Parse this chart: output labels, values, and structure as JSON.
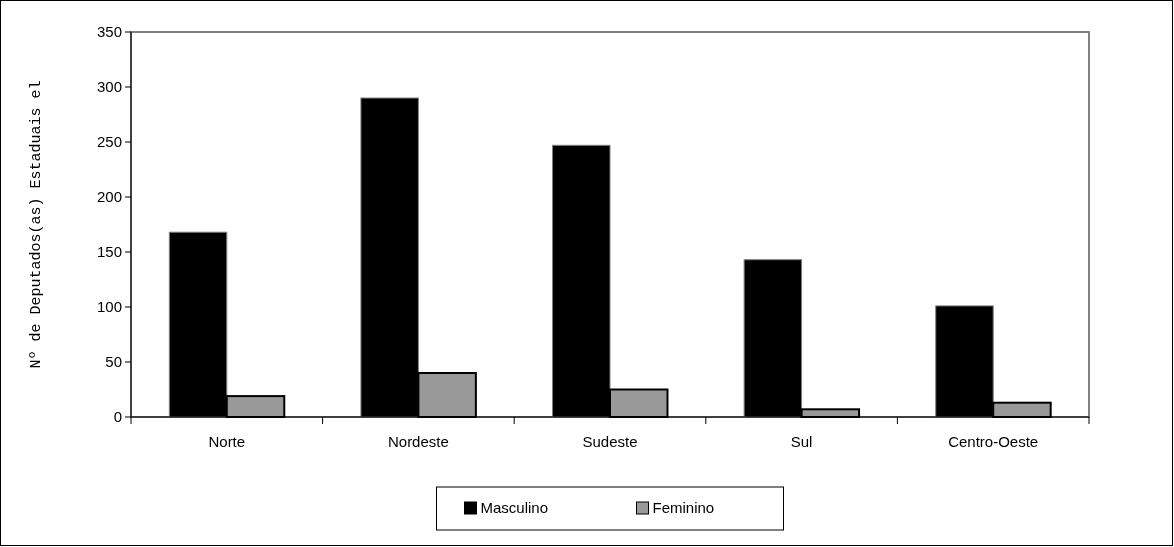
{
  "chart_data": {
    "type": "bar",
    "ylabel": "Nº de Deputados(as) Estaduais el",
    "categories": [
      "Norte",
      "Nordeste",
      "Sudeste",
      "Sul",
      "Centro-Oeste"
    ],
    "series": [
      {
        "name": "Masculino",
        "color": "#000000",
        "values": [
          168,
          290,
          247,
          143,
          101
        ]
      },
      {
        "name": "Feminino",
        "color": "#999999",
        "values": [
          19,
          40,
          25,
          7,
          13
        ]
      }
    ],
    "ylim": [
      0,
      350
    ],
    "yticks": [
      0,
      50,
      100,
      150,
      200,
      250,
      300,
      350
    ],
    "grid": false,
    "legend": "bottom"
  }
}
